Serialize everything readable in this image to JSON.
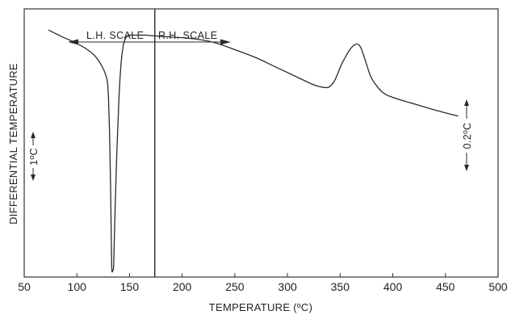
{
  "chart_data": {
    "type": "line",
    "title": "",
    "xlabel": "TEMPERATURE (ºC)",
    "ylabel": "DIFFERENTIAL TEMPERATURE",
    "xlim": [
      50,
      500
    ],
    "x_ticks": [
      50,
      100,
      150,
      200,
      250,
      300,
      350,
      400,
      450,
      500
    ],
    "tick_labels": [
      "50",
      "100",
      "150",
      "200",
      "250",
      "300",
      "350",
      "400",
      "450",
      "500"
    ],
    "ylim": [
      0,
      1
    ],
    "grid": false,
    "divider_x": 174,
    "annotations": {
      "scale_left": "L.H. SCALE",
      "scale_right": "R.H. SCALE",
      "left_scale_bar": "1ºC",
      "right_scale_bar": "0.2ºC"
    },
    "series": [
      {
        "x": [
          73,
          85,
          100,
          110,
          118,
          124,
          127,
          129,
          130,
          131,
          132,
          133,
          134,
          135,
          136,
          138,
          140,
          142,
          144,
          146,
          148,
          150,
          155,
          165,
          175,
          190,
          210,
          230,
          250,
          270,
          290,
          310,
          325,
          335,
          340,
          345,
          352,
          360,
          366,
          370,
          375,
          380,
          390,
          400,
          420,
          440,
          462
        ],
        "y": [
          0.921,
          0.898,
          0.871,
          0.848,
          0.821,
          0.785,
          0.758,
          0.728,
          0.667,
          0.539,
          0.337,
          0.051,
          0.024,
          0.051,
          0.212,
          0.471,
          0.67,
          0.798,
          0.862,
          0.889,
          0.899,
          0.902,
          0.902,
          0.902,
          0.899,
          0.895,
          0.889,
          0.875,
          0.848,
          0.818,
          0.781,
          0.744,
          0.717,
          0.707,
          0.71,
          0.734,
          0.798,
          0.852,
          0.869,
          0.852,
          0.795,
          0.74,
          0.69,
          0.67,
          0.646,
          0.623,
          0.6
        ]
      }
    ]
  }
}
